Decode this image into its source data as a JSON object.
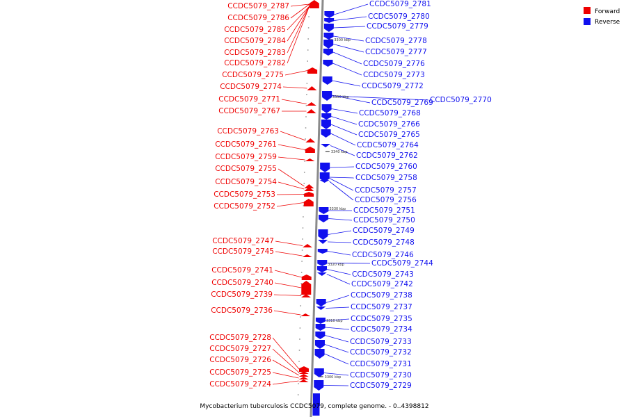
{
  "title": "Mycobacterium tuberculosis CCDC5079, complete genome. - 0..4398812",
  "colors": {
    "forward": "#ee0000",
    "reverse": "#1010ee",
    "backbone": "#888888"
  },
  "legend": [
    {
      "label": "Forward",
      "color": "#ee0000"
    },
    {
      "label": "Reverse",
      "color": "#1010ee"
    }
  ],
  "ruler": [
    "3300 kbp",
    "3350 kbp",
    "3340 kbp",
    "3330 kbp",
    "3320 kbp",
    "3310 kbp",
    "3300 kbp"
  ],
  "forward_genes": [
    "CCDC5079_2787",
    "CCDC5079_2786",
    "CCDC5079_2785",
    "CCDC5079_2784",
    "CCDC5079_2783",
    "CCDC5079_2782",
    "CCDC5079_2775",
    "CCDC5079_2774",
    "CCDC5079_2771",
    "CCDC5079_2767",
    "CCDC5079_2763",
    "CCDC5079_2761",
    "CCDC5079_2759",
    "CCDC5079_2755",
    "CCDC5079_2754",
    "CCDC5079_2753",
    "CCDC5079_2752",
    "CCDC5079_2747",
    "CCDC5079_2745",
    "CCDC5079_2741",
    "CCDC5079_2740",
    "CCDC5079_2739",
    "CCDC5079_2736",
    "CCDC5079_2728",
    "CCDC5079_2727",
    "CCDC5079_2726",
    "CCDC5079_2725",
    "CCDC5079_2724"
  ],
  "reverse_genes": [
    "CCDC5079_2781",
    "CCDC5079_2780",
    "CCDC5079_2779",
    "CCDC5079_2778",
    "CCDC5079_2777",
    "CCDC5079_2776",
    "CCDC5079_2773",
    "CCDC5079_2772",
    "CCDC5079_2770",
    "CCDC5079_2769",
    "CCDC5079_2768",
    "CCDC5079_2766",
    "CCDC5079_2765",
    "CCDC5079_2764",
    "CCDC5079_2762",
    "CCDC5079_2760",
    "CCDC5079_2758",
    "CCDC5079_2757",
    "CCDC5079_2756",
    "CCDC5079_2751",
    "CCDC5079_2750",
    "CCDC5079_2749",
    "CCDC5079_2748",
    "CCDC5079_2746",
    "CCDC5079_2744",
    "CCDC5079_2743",
    "CCDC5079_2742",
    "CCDC5079_2738",
    "CCDC5079_2737",
    "CCDC5079_2735",
    "CCDC5079_2734",
    "CCDC5079_2733",
    "CCDC5079_2732",
    "CCDC5079_2731",
    "CCDC5079_2730",
    "CCDC5079_2729"
  ]
}
